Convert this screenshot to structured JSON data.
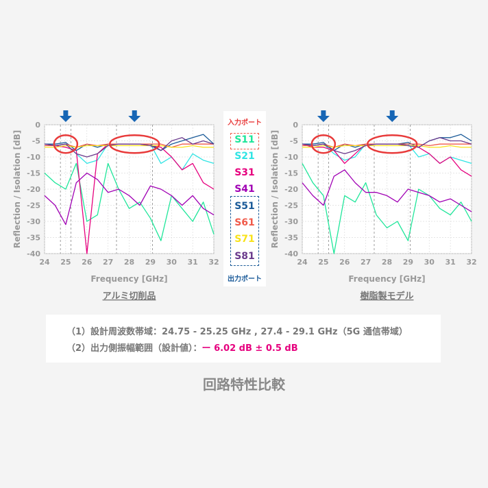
{
  "colors": {
    "S11": "#1fe69a",
    "S21": "#2fe4e4",
    "S31": "#e6007e",
    "S41": "#a000b4",
    "S51": "#1a5a98",
    "S61": "#f05a4a",
    "S71": "#f8e21a",
    "S81": "#6a3a8c",
    "marker_arrow": "#1766b5",
    "highlight_ellipse": "#e83a3a",
    "axis_text": "#999999",
    "accent": "#e6007e"
  },
  "legend": {
    "input_header": "入力ポート",
    "output_header": "出力ポート",
    "items": [
      "S11",
      "S21",
      "S31",
      "S41",
      "S51",
      "S61",
      "S71",
      "S81"
    ]
  },
  "chart_data": [
    {
      "type": "line",
      "title": "アルミ切削品",
      "xlabel": "Frequency [GHz]",
      "ylabel": "Reflection / Isolation [dB]",
      "xlim": [
        24,
        32
      ],
      "ylim": [
        -40,
        0
      ],
      "xticks": [
        "24",
        "25",
        "26",
        "27",
        "28",
        "29",
        "30",
        "31",
        "32"
      ],
      "yticks": [
        "0",
        "-5",
        "-10",
        "-15",
        "-20",
        "-25",
        "-30",
        "-35",
        "-40"
      ],
      "grid": true,
      "design_band_markers_ghz": [
        24.75,
        25.25,
        27.4,
        29.1
      ],
      "arrow_markers_ghz": [
        25.0,
        28.25
      ],
      "series": [
        {
          "name": "S11",
          "x": [
            24.0,
            24.5,
            25.0,
            25.5,
            26.0,
            26.5,
            27.0,
            27.5,
            28.0,
            28.5,
            29.0,
            29.5,
            30.0,
            30.5,
            31.0,
            31.5,
            32.0
          ],
          "y": [
            -15,
            -18,
            -20,
            -12,
            -30,
            -28,
            -12,
            -20,
            -26,
            -24,
            -29,
            -36,
            -22,
            -26,
            -30,
            -24,
            -34
          ]
        },
        {
          "name": "S21",
          "x": [
            24.0,
            24.5,
            25.0,
            25.5,
            26.0,
            26.5,
            27.0,
            27.5,
            28.0,
            28.5,
            29.0,
            29.5,
            30.0,
            30.5,
            31.0,
            31.5,
            32.0
          ],
          "y": [
            -6,
            -6.5,
            -6,
            -9,
            -12,
            -11,
            -6,
            -6,
            -6,
            -6,
            -6,
            -12,
            -10,
            -14,
            -9,
            -11,
            -12
          ]
        },
        {
          "name": "S31",
          "x": [
            24.0,
            24.5,
            25.0,
            25.5,
            26.0,
            26.5,
            27.0,
            27.5,
            28.0,
            28.5,
            29.0,
            29.5,
            30.0,
            30.5,
            31.0,
            31.5,
            32.0
          ],
          "y": [
            -6,
            -6.5,
            -7,
            -8,
            -40,
            -9,
            -6,
            -6,
            -6,
            -6,
            -6.5,
            -7,
            -10,
            -14,
            -12,
            -18,
            -20
          ]
        },
        {
          "name": "S41",
          "x": [
            24.0,
            24.5,
            25.0,
            25.5,
            26.0,
            26.5,
            27.0,
            27.5,
            28.0,
            28.5,
            29.0,
            29.5,
            30.0,
            30.5,
            31.0,
            31.5,
            32.0
          ],
          "y": [
            -22,
            -25,
            -31,
            -18,
            -15,
            -17,
            -21,
            -20,
            -22,
            -25,
            -19,
            -20,
            -22,
            -25,
            -22,
            -26,
            -28
          ]
        },
        {
          "name": "S51",
          "x": [
            24.0,
            24.5,
            25.0,
            25.5,
            26.0,
            26.5,
            27.0,
            27.5,
            28.0,
            28.5,
            29.0,
            29.5,
            30.0,
            30.5,
            31.0,
            31.5,
            32.0
          ],
          "y": [
            -6,
            -6,
            -5.5,
            -8,
            -6,
            -7,
            -6,
            -6,
            -6,
            -6,
            -6,
            -8,
            -6,
            -5,
            -4,
            -3,
            -6
          ]
        },
        {
          "name": "S61",
          "x": [
            24.0,
            24.5,
            25.0,
            25.5,
            26.0,
            26.5,
            27.0,
            27.5,
            28.0,
            28.5,
            29.0,
            29.5,
            30.0,
            30.5,
            31.0,
            31.5,
            32.0
          ],
          "y": [
            -6.5,
            -6.5,
            -6,
            -7,
            -6,
            -6.5,
            -6,
            -6,
            -6,
            -6,
            -6,
            -6,
            -7,
            -6,
            -6,
            -6,
            -6
          ]
        },
        {
          "name": "S71",
          "x": [
            24.0,
            24.5,
            25.0,
            25.5,
            26.0,
            26.5,
            27.0,
            27.5,
            28.0,
            28.5,
            29.0,
            29.5,
            30.0,
            30.5,
            31.0,
            31.5,
            32.0
          ],
          "y": [
            -7,
            -7,
            -6.5,
            -7,
            -6.5,
            -6.5,
            -6.5,
            -6.5,
            -6.5,
            -6.5,
            -6.5,
            -6.5,
            -7,
            -7,
            -6.5,
            -7,
            -7
          ]
        },
        {
          "name": "S81",
          "x": [
            24.0,
            24.5,
            25.0,
            25.5,
            26.0,
            26.5,
            27.0,
            27.5,
            28.0,
            28.5,
            29.0,
            29.5,
            30.0,
            30.5,
            31.0,
            31.5,
            32.0
          ],
          "y": [
            -6,
            -6.5,
            -6,
            -9,
            -10,
            -9,
            -6.5,
            -6,
            -6,
            -6,
            -6.5,
            -8,
            -5,
            -4,
            -6,
            -5,
            -6
          ]
        }
      ]
    },
    {
      "type": "line",
      "title": "樹脂製モデル",
      "xlabel": "Frequency [GHz]",
      "ylabel": "Reflection / Isolation [dB]",
      "xlim": [
        24,
        32
      ],
      "ylim": [
        -40,
        0
      ],
      "xticks": [
        "24",
        "25",
        "26",
        "27",
        "28",
        "29",
        "30",
        "31",
        "32"
      ],
      "yticks": [
        "0",
        "-5",
        "-10",
        "-15",
        "-20",
        "-25",
        "-30",
        "-35",
        "-40"
      ],
      "grid": true,
      "design_band_markers_ghz": [
        24.75,
        25.25,
        27.4,
        29.1
      ],
      "arrow_markers_ghz": [
        25.0,
        28.25
      ],
      "series": [
        {
          "name": "S11",
          "x": [
            24.0,
            24.5,
            25.0,
            25.5,
            26.0,
            26.5,
            27.0,
            27.5,
            28.0,
            28.5,
            29.0,
            29.5,
            30.0,
            30.5,
            31.0,
            31.5,
            32.0
          ],
          "y": [
            -12,
            -18,
            -22,
            -40,
            -22,
            -24,
            -18,
            -28,
            -32,
            -30,
            -36,
            -20,
            -22,
            -26,
            -28,
            -24,
            -30
          ]
        },
        {
          "name": "S21",
          "x": [
            24.0,
            24.5,
            25.0,
            25.5,
            26.0,
            26.5,
            27.0,
            27.5,
            28.0,
            28.5,
            29.0,
            29.5,
            30.0,
            30.5,
            31.0,
            31.5,
            32.0
          ],
          "y": [
            -6,
            -6.5,
            -6,
            -9,
            -11,
            -10,
            -6,
            -6,
            -6,
            -6,
            -6,
            -10,
            -9,
            -12,
            -10,
            -11,
            -12
          ]
        },
        {
          "name": "S31",
          "x": [
            24.0,
            24.5,
            25.0,
            25.5,
            26.0,
            26.5,
            27.0,
            27.5,
            28.0,
            28.5,
            29.0,
            29.5,
            30.0,
            30.5,
            31.0,
            31.5,
            32.0
          ],
          "y": [
            -6,
            -7,
            -7,
            -8,
            -12,
            -9,
            -6,
            -6,
            -6,
            -6,
            -6.5,
            -7,
            -9,
            -12,
            -10,
            -14,
            -16
          ]
        },
        {
          "name": "S41",
          "x": [
            24.0,
            24.5,
            25.0,
            25.5,
            26.0,
            26.5,
            27.0,
            27.5,
            28.0,
            28.5,
            29.0,
            29.5,
            30.0,
            30.5,
            31.0,
            31.5,
            32.0
          ],
          "y": [
            -18,
            -22,
            -25,
            -16,
            -14,
            -18,
            -21,
            -21,
            -22,
            -24,
            -20,
            -21,
            -22,
            -24,
            -23,
            -25,
            -27
          ]
        },
        {
          "name": "S51",
          "x": [
            24.0,
            24.5,
            25.0,
            25.5,
            26.0,
            26.5,
            27.0,
            27.5,
            28.0,
            28.5,
            29.0,
            29.5,
            30.0,
            30.5,
            31.0,
            31.5,
            32.0
          ],
          "y": [
            -6,
            -6,
            -5.5,
            -8,
            -6,
            -7,
            -6,
            -6,
            -6,
            -6,
            -5.5,
            -7,
            -5,
            -4,
            -4,
            -3,
            -5
          ]
        },
        {
          "name": "S61",
          "x": [
            24.0,
            24.5,
            25.0,
            25.5,
            26.0,
            26.5,
            27.0,
            27.5,
            28.0,
            28.5,
            29.0,
            29.5,
            30.0,
            30.5,
            31.0,
            31.5,
            32.0
          ],
          "y": [
            -6.5,
            -6.5,
            -6,
            -7,
            -6,
            -6.5,
            -6,
            -6,
            -6,
            -6,
            -6,
            -6,
            -6.5,
            -6,
            -6,
            -6,
            -6
          ]
        },
        {
          "name": "S71",
          "x": [
            24.0,
            24.5,
            25.0,
            25.5,
            26.0,
            26.5,
            27.0,
            27.5,
            28.0,
            28.5,
            29.0,
            29.5,
            30.0,
            30.5,
            31.0,
            31.5,
            32.0
          ],
          "y": [
            -7,
            -7,
            -6.5,
            -7,
            -6.5,
            -6.5,
            -6.5,
            -6.5,
            -6.5,
            -6.5,
            -6.5,
            -6.5,
            -7,
            -7,
            -6.5,
            -7,
            -7
          ]
        },
        {
          "name": "S81",
          "x": [
            24.0,
            24.5,
            25.0,
            25.5,
            26.0,
            26.5,
            27.0,
            27.5,
            28.0,
            28.5,
            29.0,
            29.5,
            30.0,
            30.5,
            31.0,
            31.5,
            32.0
          ],
          "y": [
            -6,
            -6.5,
            -6,
            -8,
            -9,
            -8,
            -6.5,
            -6,
            -6,
            -6,
            -6.5,
            -7,
            -5,
            -4,
            -5,
            -5,
            -6
          ]
        }
      ]
    }
  ],
  "notes": {
    "line1": "（1）設計周波数帯域：24.75 - 25.25 GHz , 27.4 - 29.1 GHz（5G 通信帯域）",
    "line2_prefix": "（2）出力側振幅範囲（設計値）：",
    "line2_value": "ー 6.02 dB ± 0.5 dB"
  },
  "caption": "回路特性比較"
}
